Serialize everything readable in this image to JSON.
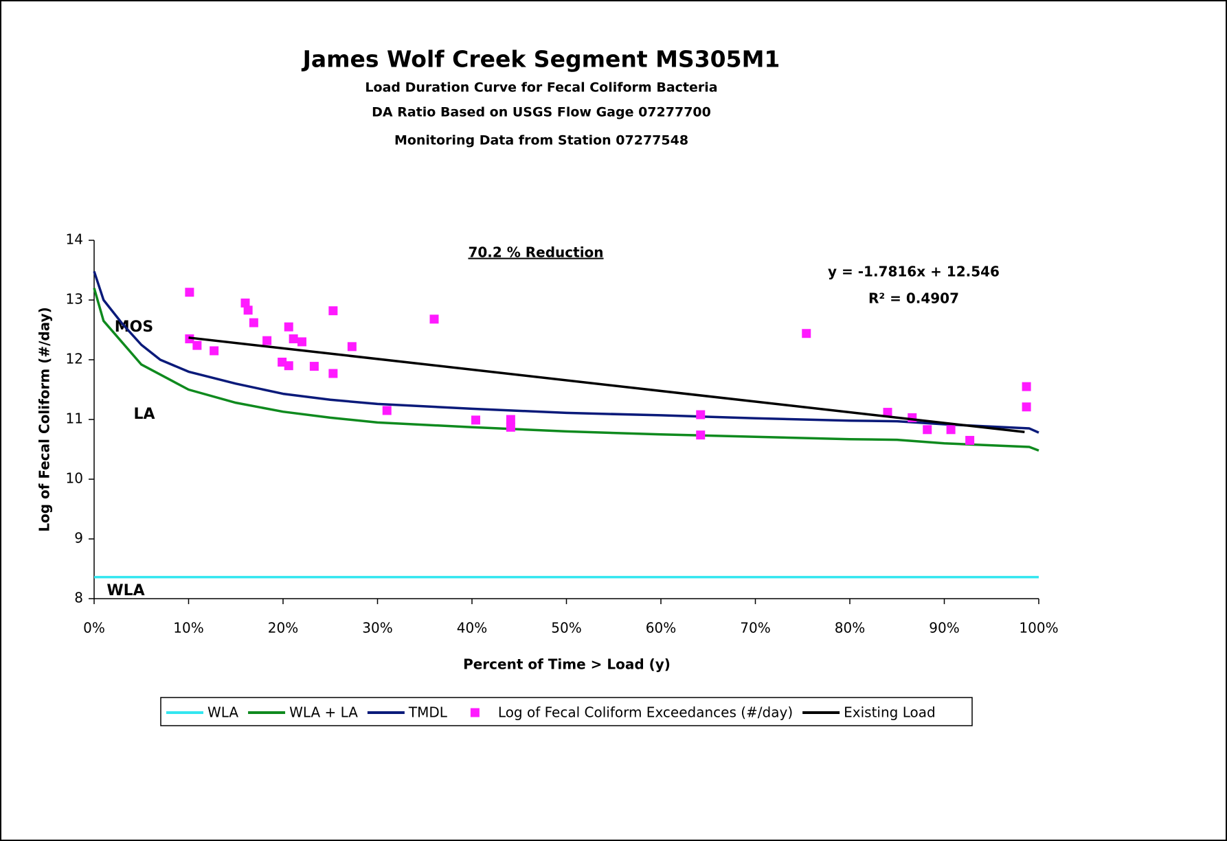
{
  "chart_data": {
    "type": "line",
    "title": "James Wolf Creek Segment MS305M1",
    "subtitles": [
      "Load Duration Curve for Fecal Coliform Bacteria",
      "DA Ratio Based on USGS Flow Gage 07277700",
      "Monitoring Data from Station 07277548"
    ],
    "x_label": "Percent of Time > Load (y)",
    "y_label": "Log of Fecal Coliform (#/day)",
    "annotations": [
      "70.2 % Reduction",
      "y = -1.7816x + 12.546",
      "R² = 0.4907",
      "MOS",
      "LA",
      "WLA"
    ],
    "xlim": [
      0,
      100
    ],
    "ylim": [
      8,
      14
    ],
    "xticks": [
      {
        "value": 0,
        "label": "0%"
      },
      {
        "value": 10,
        "label": "10%"
      },
      {
        "value": 20,
        "label": "20%"
      },
      {
        "value": 30,
        "label": "30%"
      },
      {
        "value": 40,
        "label": "40%"
      },
      {
        "value": 50,
        "label": "50%"
      },
      {
        "value": 60,
        "label": "60%"
      },
      {
        "value": 70,
        "label": "70%"
      },
      {
        "value": 80,
        "label": "80%"
      },
      {
        "value": 90,
        "label": "90%"
      },
      {
        "value": 100,
        "label": "100%"
      }
    ],
    "yticks": [
      8,
      9,
      10,
      11,
      12,
      13,
      14
    ],
    "legend": "bottom",
    "series": [
      {
        "name": "WLA",
        "type": "line",
        "color": "#33e6f0",
        "x": [
          0,
          100
        ],
        "values": [
          8.36,
          8.36
        ]
      },
      {
        "name": "WLA + LA",
        "type": "line",
        "color": "#0f8a1e",
        "x": [
          0,
          1,
          5,
          10,
          15,
          20,
          25,
          30,
          40,
          50,
          60,
          70,
          80,
          85,
          90,
          99,
          100
        ],
        "values": [
          13.2,
          12.65,
          11.92,
          11.5,
          11.28,
          11.13,
          11.03,
          10.95,
          10.87,
          10.8,
          10.75,
          10.71,
          10.67,
          10.66,
          10.6,
          10.54,
          10.48
        ]
      },
      {
        "name": "TMDL",
        "type": "line",
        "color": "#0a1a7a",
        "x": [
          0,
          1,
          3,
          5,
          7,
          10,
          15,
          20,
          25,
          30,
          40,
          50,
          60,
          70,
          80,
          85,
          90,
          99,
          100
        ],
        "values": [
          13.48,
          13.0,
          12.6,
          12.25,
          12.0,
          11.8,
          11.6,
          11.43,
          11.33,
          11.26,
          11.18,
          11.11,
          11.07,
          11.02,
          10.98,
          10.97,
          10.92,
          10.85,
          10.78
        ]
      },
      {
        "name": "Log of Fecal Coliform Exceedances (#/day)",
        "type": "scatter",
        "color": "#ff1aff",
        "x": [
          10.1,
          10.1,
          10.9,
          12.7,
          16.0,
          16.3,
          16.9,
          18.3,
          19.9,
          20.6,
          20.6,
          21.1,
          22.0,
          23.3,
          25.3,
          25.3,
          27.3,
          31.0,
          36.0,
          40.4,
          44.1,
          44.1,
          64.2,
          64.2,
          75.4,
          84.0,
          86.6,
          88.2,
          90.7,
          92.7,
          98.7,
          98.7
        ],
        "values": [
          13.13,
          12.35,
          12.24,
          12.15,
          12.95,
          12.83,
          12.62,
          12.32,
          11.96,
          12.55,
          11.9,
          12.35,
          12.3,
          11.89,
          12.82,
          11.77,
          12.22,
          11.15,
          12.68,
          10.99,
          11.0,
          10.87,
          11.08,
          10.74,
          12.44,
          11.12,
          11.03,
          10.83,
          10.83,
          10.65,
          11.55,
          11.21
        ]
      },
      {
        "name": "Existing Load",
        "type": "line",
        "color": "#000000",
        "x": [
          10,
          98.5
        ],
        "values": [
          12.37,
          10.79
        ]
      }
    ]
  }
}
